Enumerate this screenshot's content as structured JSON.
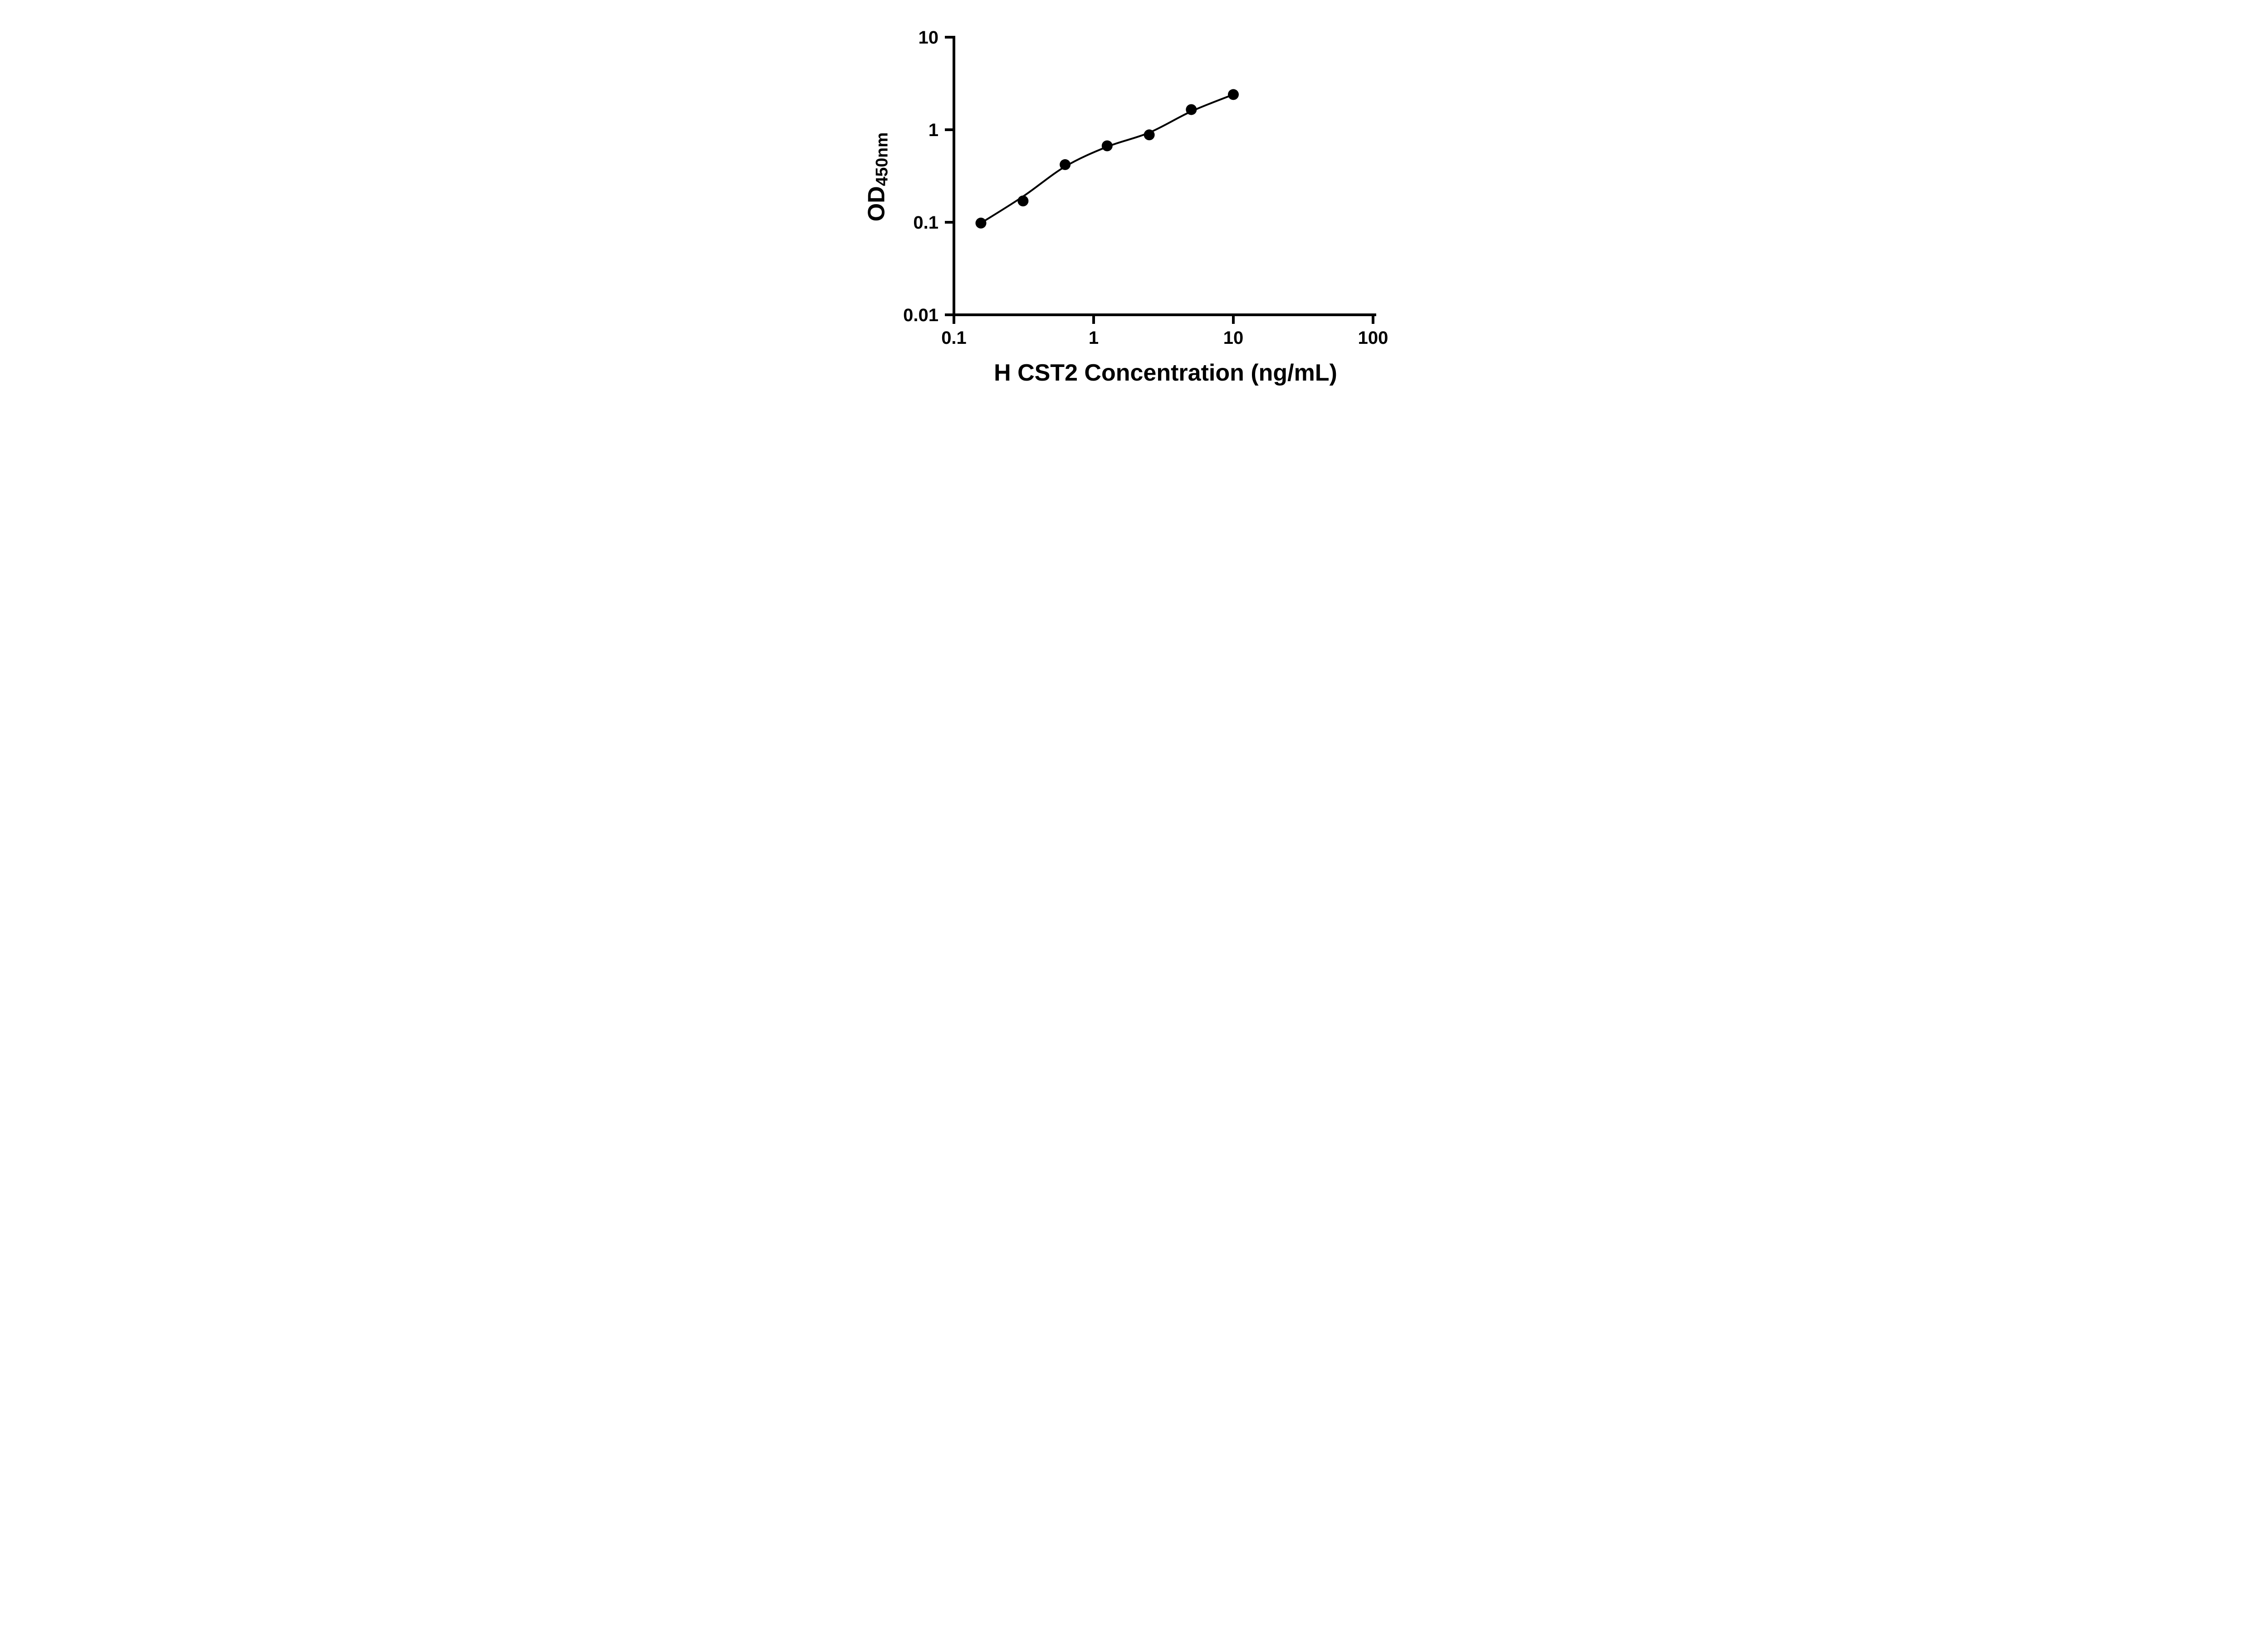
{
  "chart_data": {
    "type": "scatter",
    "title": "",
    "xlabel": "H CST2 Concentration (ng/mL)",
    "ylabel": "OD450nm",
    "ylabel_main": "OD",
    "ylabel_sub": "450nm",
    "x_scale": "log",
    "y_scale": "log",
    "xlim": [
      0.1,
      100
    ],
    "ylim": [
      0.01,
      10
    ],
    "x_ticks": [
      0.1,
      1,
      10,
      100
    ],
    "x_tick_labels": [
      "0.1",
      "1",
      "10",
      "100"
    ],
    "y_ticks": [
      0.01,
      0.1,
      1,
      10
    ],
    "y_tick_labels": [
      "0.01",
      "0.1",
      "1",
      "10"
    ],
    "grid": false,
    "legend": "none",
    "points": {
      "x": [
        0.156,
        0.3125,
        0.625,
        1.25,
        2.5,
        5,
        10
      ],
      "y": [
        0.098,
        0.17,
        0.42,
        0.67,
        0.88,
        1.65,
        2.4
      ]
    },
    "fit_curve": {
      "x": [
        0.156,
        0.3125,
        0.625,
        1.25,
        2.5,
        5,
        10
      ],
      "y": [
        0.098,
        0.19,
        0.4,
        0.655,
        0.93,
        1.58,
        2.4
      ]
    },
    "marker": {
      "shape": "circle",
      "color": "#000000",
      "radius_px": 12
    },
    "line_color": "#000000",
    "axis_color": "#000000",
    "background": "#ffffff"
  }
}
